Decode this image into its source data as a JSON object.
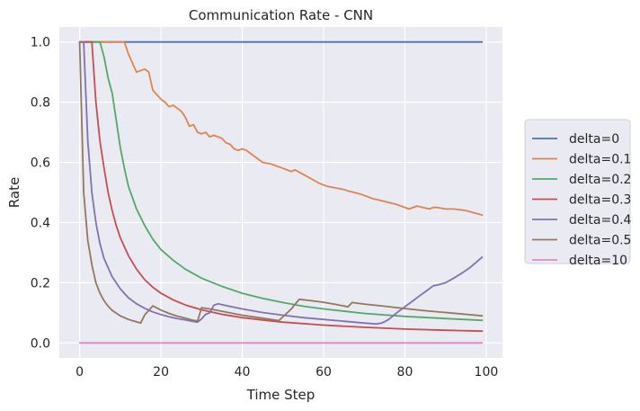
{
  "chart_data": {
    "type": "line",
    "title": "Communication Rate - CNN",
    "xlabel": "Time Step",
    "ylabel": "Rate",
    "xlim": [
      -5,
      104
    ],
    "ylim": [
      -0.05,
      1.05
    ],
    "xticks": [
      0,
      20,
      40,
      60,
      80,
      100
    ],
    "yticks": [
      0.0,
      0.2,
      0.4,
      0.6,
      0.8,
      1.0
    ],
    "xtick_labels": [
      "0",
      "20",
      "40",
      "60",
      "80",
      "100"
    ],
    "ytick_labels": [
      "0.0",
      "0.2",
      "0.4",
      "0.6",
      "0.8",
      "1.0"
    ],
    "grid": true,
    "background": "#eaeaf2",
    "legend_position": "right, outside plot",
    "series": [
      {
        "name": "delta=0",
        "color": "#4c72b0",
        "x": [
          0,
          99
        ],
        "y": [
          1.0,
          1.0
        ]
      },
      {
        "name": "delta=0.1",
        "color": "#dd8452",
        "x": [
          0,
          11,
          12,
          14,
          16,
          17,
          18,
          20,
          21,
          22,
          23,
          25,
          26,
          27,
          28,
          29,
          30,
          31,
          32,
          33,
          34,
          35,
          36,
          37,
          38,
          39,
          40,
          41,
          43,
          45,
          47,
          50,
          51,
          52,
          53,
          55,
          57,
          59,
          61,
          63,
          65,
          66,
          69,
          72,
          75,
          78,
          81,
          83,
          86,
          87,
          88,
          90,
          92,
          95,
          99
        ],
        "y": [
          1.0,
          1.0,
          0.96,
          0.9,
          0.91,
          0.9,
          0.84,
          0.81,
          0.8,
          0.785,
          0.79,
          0.77,
          0.75,
          0.72,
          0.725,
          0.7,
          0.695,
          0.7,
          0.685,
          0.69,
          0.685,
          0.68,
          0.665,
          0.66,
          0.645,
          0.64,
          0.645,
          0.64,
          0.62,
          0.6,
          0.595,
          0.58,
          0.575,
          0.57,
          0.575,
          0.56,
          0.545,
          0.53,
          0.52,
          0.515,
          0.51,
          0.505,
          0.495,
          0.48,
          0.47,
          0.46,
          0.445,
          0.455,
          0.445,
          0.45,
          0.45,
          0.445,
          0.445,
          0.44,
          0.425
        ]
      },
      {
        "name": "delta=0.2",
        "color": "#55a868",
        "x": [
          0,
          5,
          6,
          7,
          8,
          9,
          10,
          11,
          12,
          14,
          16,
          18,
          20,
          23,
          26,
          30,
          35,
          40,
          45,
          50,
          55,
          60,
          70,
          80,
          90,
          99
        ],
        "y": [
          1.0,
          1.0,
          0.95,
          0.88,
          0.83,
          0.74,
          0.65,
          0.58,
          0.52,
          0.445,
          0.39,
          0.345,
          0.31,
          0.275,
          0.245,
          0.215,
          0.188,
          0.165,
          0.148,
          0.134,
          0.122,
          0.113,
          0.098,
          0.088,
          0.081,
          0.075
        ]
      },
      {
        "name": "delta=0.3",
        "color": "#c44e52",
        "x": [
          0,
          3,
          4,
          5,
          6,
          7,
          8,
          9,
          10,
          12,
          14,
          16,
          18,
          20,
          23,
          26,
          30,
          35,
          40,
          45,
          50,
          60,
          70,
          80,
          90,
          99
        ],
        "y": [
          1.0,
          1.0,
          0.8,
          0.67,
          0.58,
          0.5,
          0.44,
          0.39,
          0.35,
          0.29,
          0.245,
          0.21,
          0.185,
          0.165,
          0.143,
          0.126,
          0.11,
          0.095,
          0.084,
          0.076,
          0.069,
          0.059,
          0.052,
          0.046,
          0.042,
          0.039
        ]
      },
      {
        "name": "delta=0.4",
        "color": "#8172b3",
        "x": [
          0,
          1,
          2,
          3,
          4,
          5,
          6,
          7,
          8,
          10,
          12,
          14,
          16,
          18,
          20,
          22,
          24,
          26,
          28,
          29,
          30,
          31,
          32,
          33,
          34,
          36,
          40,
          45,
          50,
          55,
          60,
          65,
          70,
          73,
          74,
          75,
          76,
          78,
          80,
          82,
          84,
          85,
          86,
          87,
          88,
          90,
          92,
          94,
          96,
          99
        ],
        "y": [
          1.0,
          1.0,
          0.67,
          0.5,
          0.4,
          0.33,
          0.28,
          0.25,
          0.22,
          0.18,
          0.15,
          0.13,
          0.115,
          0.103,
          0.094,
          0.087,
          0.081,
          0.076,
          0.071,
          0.069,
          0.08,
          0.095,
          0.1,
          0.125,
          0.13,
          0.124,
          0.113,
          0.101,
          0.092,
          0.084,
          0.078,
          0.072,
          0.066,
          0.063,
          0.065,
          0.07,
          0.078,
          0.1,
          0.12,
          0.14,
          0.16,
          0.17,
          0.18,
          0.19,
          0.192,
          0.2,
          0.215,
          0.232,
          0.25,
          0.285
        ]
      },
      {
        "name": "delta=0.5",
        "color": "#937860",
        "x": [
          0,
          1,
          2,
          3,
          4,
          5,
          6,
          7,
          8,
          10,
          12,
          14,
          15,
          16,
          18,
          20,
          22,
          24,
          26,
          28,
          29,
          30,
          32,
          35,
          40,
          45,
          49,
          52,
          54,
          57,
          60,
          63,
          66,
          67,
          70,
          75,
          80,
          85,
          90,
          95,
          99
        ],
        "y": [
          1.0,
          0.5,
          0.34,
          0.26,
          0.2,
          0.165,
          0.14,
          0.122,
          0.108,
          0.09,
          0.078,
          0.07,
          0.066,
          0.093,
          0.123,
          0.109,
          0.098,
          0.089,
          0.082,
          0.075,
          0.073,
          0.117,
          0.113,
          0.105,
          0.092,
          0.082,
          0.074,
          0.112,
          0.145,
          0.14,
          0.135,
          0.128,
          0.12,
          0.134,
          0.129,
          0.122,
          0.114,
          0.107,
          0.101,
          0.095,
          0.09
        ]
      },
      {
        "name": "delta=10",
        "color": "#da8bc3",
        "x": [
          0,
          99
        ],
        "y": [
          0.0,
          0.0
        ]
      }
    ]
  }
}
